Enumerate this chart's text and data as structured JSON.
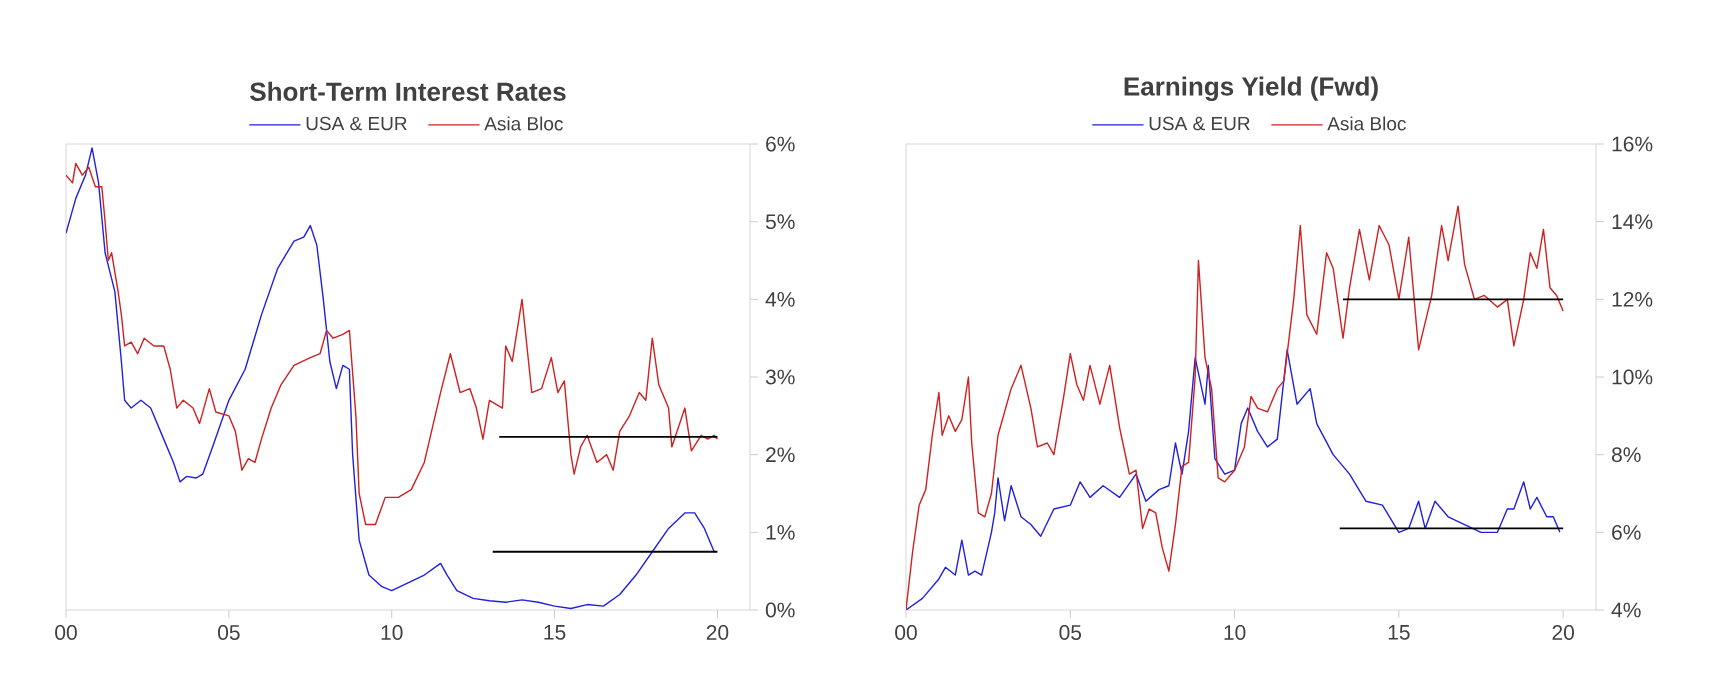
{
  "chart_data": [
    {
      "type": "line",
      "title": "Short-Term Interest Rates",
      "legend": "top",
      "marker": "none",
      "xlim": [
        0,
        21
      ],
      "xticks": [
        {
          "value": 0,
          "label": "00"
        },
        {
          "value": 5,
          "label": "05"
        },
        {
          "value": 10,
          "label": "10"
        },
        {
          "value": 15,
          "label": "15"
        },
        {
          "value": 20,
          "label": "20"
        }
      ],
      "ylim": [
        0,
        6
      ],
      "yticks": [
        {
          "value": 0,
          "label": "0%"
        },
        {
          "value": 1,
          "label": "1%"
        },
        {
          "value": 2,
          "label": "2%"
        },
        {
          "value": 3,
          "label": "3%"
        },
        {
          "value": 4,
          "label": "4%"
        },
        {
          "value": 5,
          "label": "5%"
        },
        {
          "value": 6,
          "label": "6%"
        }
      ],
      "series": [
        {
          "name": "USA & EUR",
          "color": "#2020e0",
          "x": [
            0,
            0.3,
            0.6,
            0.8,
            1.0,
            1.2,
            1.5,
            1.7,
            1.8,
            2.0,
            2.3,
            2.6,
            3.0,
            3.3,
            3.5,
            3.7,
            4.0,
            4.2,
            4.5,
            5.0,
            5.5,
            6.0,
            6.5,
            7.0,
            7.3,
            7.5,
            7.7,
            7.9,
            8.1,
            8.3,
            8.5,
            8.7,
            8.8,
            9.0,
            9.3,
            9.7,
            10.0,
            10.5,
            11.0,
            11.5,
            11.7,
            12.0,
            12.5,
            13.0,
            13.5,
            14.0,
            14.5,
            15.0,
            15.5,
            16.0,
            16.5,
            17.0,
            17.5,
            18.0,
            18.5,
            19.0,
            19.3,
            19.6,
            19.9
          ],
          "values": [
            4.85,
            5.3,
            5.6,
            5.95,
            5.5,
            4.6,
            4.1,
            3.2,
            2.7,
            2.6,
            2.7,
            2.6,
            2.2,
            1.9,
            1.65,
            1.72,
            1.7,
            1.75,
            2.1,
            2.7,
            3.1,
            3.8,
            4.4,
            4.75,
            4.8,
            4.95,
            4.7,
            4.0,
            3.2,
            2.85,
            3.15,
            3.1,
            2.0,
            0.9,
            0.45,
            0.3,
            0.25,
            0.35,
            0.45,
            0.6,
            0.45,
            0.25,
            0.15,
            0.12,
            0.1,
            0.13,
            0.1,
            0.05,
            0.02,
            0.07,
            0.05,
            0.2,
            0.45,
            0.75,
            1.05,
            1.25,
            1.25,
            1.05,
            0.75
          ]
        },
        {
          "name": "Asia Bloc",
          "color": "#d02020",
          "x": [
            0,
            0.2,
            0.3,
            0.5,
            0.7,
            0.9,
            1.1,
            1.2,
            1.3,
            1.4,
            1.6,
            1.7,
            1.8,
            2.0,
            2.2,
            2.4,
            2.7,
            3.0,
            3.2,
            3.4,
            3.6,
            3.9,
            4.1,
            4.4,
            4.6,
            5.0,
            5.2,
            5.4,
            5.6,
            5.8,
            6.0,
            6.3,
            6.6,
            7.0,
            7.5,
            7.8,
            8.0,
            8.2,
            8.5,
            8.7,
            8.9,
            9.0,
            9.2,
            9.5,
            9.8,
            10.2,
            10.6,
            11.0,
            11.5,
            11.8,
            12.1,
            12.4,
            12.6,
            12.8,
            13.0,
            13.4,
            13.5,
            13.7,
            14.0,
            14.3,
            14.6,
            14.9,
            15.1,
            15.3,
            15.5,
            15.6,
            15.8,
            16.0,
            16.3,
            16.6,
            16.8,
            17.0,
            17.3,
            17.6,
            17.8,
            18.0,
            18.2,
            18.5,
            18.6,
            19.0,
            19.2,
            19.5,
            19.7,
            19.9,
            20.0
          ],
          "values": [
            5.6,
            5.5,
            5.75,
            5.6,
            5.7,
            5.45,
            5.45,
            5.0,
            4.5,
            4.6,
            4.1,
            3.8,
            3.4,
            3.45,
            3.3,
            3.5,
            3.4,
            3.4,
            3.1,
            2.6,
            2.7,
            2.6,
            2.4,
            2.85,
            2.55,
            2.5,
            2.3,
            1.8,
            1.95,
            1.9,
            2.2,
            2.6,
            2.9,
            3.15,
            3.25,
            3.3,
            3.6,
            3.5,
            3.55,
            3.6,
            2.5,
            1.5,
            1.1,
            1.1,
            1.45,
            1.45,
            1.55,
            1.9,
            2.8,
            3.3,
            2.8,
            2.85,
            2.6,
            2.2,
            2.7,
            2.6,
            3.4,
            3.2,
            4.0,
            2.8,
            2.85,
            3.25,
            2.8,
            2.95,
            2.0,
            1.75,
            2.1,
            2.25,
            1.9,
            2.0,
            1.8,
            2.3,
            2.5,
            2.8,
            2.7,
            3.5,
            2.9,
            2.6,
            2.1,
            2.6,
            2.05,
            2.25,
            2.2,
            2.25,
            2.2
          ]
        },
        {
          "color": "#000000",
          "x": [
            13.3,
            20
          ],
          "values": [
            2.23,
            2.23
          ]
        },
        {
          "color": "#000000",
          "x": [
            13.1,
            20
          ],
          "values": [
            0.75,
            0.75
          ]
        }
      ]
    },
    {
      "type": "line",
      "title": "Earnings Yield (Fwd)",
      "legend": "top",
      "marker": "none",
      "xlim": [
        0,
        21
      ],
      "xticks": [
        {
          "value": 0,
          "label": "00"
        },
        {
          "value": 5,
          "label": "05"
        },
        {
          "value": 10,
          "label": "10"
        },
        {
          "value": 15,
          "label": "15"
        },
        {
          "value": 20,
          "label": "20"
        }
      ],
      "ylim": [
        4,
        16
      ],
      "yticks": [
        {
          "value": 4,
          "label": "4%"
        },
        {
          "value": 6,
          "label": "6%"
        },
        {
          "value": 8,
          "label": "8%"
        },
        {
          "value": 10,
          "label": "10%"
        },
        {
          "value": 12,
          "label": "12%"
        },
        {
          "value": 14,
          "label": "14%"
        },
        {
          "value": 16,
          "label": "16%"
        }
      ],
      "series": [
        {
          "name": "USA & EUR",
          "color": "#2020e0",
          "x": [
            0,
            0.5,
            1.0,
            1.2,
            1.5,
            1.7,
            1.9,
            2.1,
            2.3,
            2.6,
            2.7,
            2.8,
            3.0,
            3.2,
            3.5,
            3.8,
            4.1,
            4.5,
            5.0,
            5.3,
            5.6,
            6.0,
            6.5,
            7.0,
            7.3,
            7.7,
            8.0,
            8.2,
            8.4,
            8.6,
            8.8,
            9.1,
            9.2,
            9.4,
            9.7,
            10.0,
            10.2,
            10.4,
            10.7,
            11.0,
            11.3,
            11.6,
            11.9,
            12.3,
            12.5,
            13.0,
            13.5,
            14.0,
            14.5,
            15.0,
            15.3,
            15.6,
            15.8,
            16.1,
            16.5,
            17.0,
            17.5,
            18.0,
            18.3,
            18.5,
            18.8,
            19.0,
            19.2,
            19.5,
            19.7,
            19.9
          ],
          "values": [
            4.0,
            4.3,
            4.8,
            5.1,
            4.9,
            5.8,
            4.9,
            5.0,
            4.9,
            6.0,
            6.5,
            7.4,
            6.3,
            7.2,
            6.4,
            6.2,
            5.9,
            6.6,
            6.7,
            7.3,
            6.9,
            7.2,
            6.9,
            7.5,
            6.8,
            7.1,
            7.2,
            8.3,
            7.5,
            8.6,
            10.5,
            9.3,
            10.3,
            7.9,
            7.5,
            7.6,
            8.8,
            9.2,
            8.6,
            8.2,
            8.4,
            10.7,
            9.3,
            9.7,
            8.8,
            8.0,
            7.5,
            6.8,
            6.7,
            6.0,
            6.1,
            6.8,
            6.1,
            6.8,
            6.4,
            6.2,
            6.0,
            6.0,
            6.6,
            6.6,
            7.3,
            6.6,
            6.9,
            6.4,
            6.4,
            6.0
          ]
        },
        {
          "name": "Asia Bloc",
          "color": "#d02020",
          "x": [
            0,
            0.2,
            0.4,
            0.6,
            0.8,
            1.0,
            1.1,
            1.3,
            1.5,
            1.7,
            1.9,
            2.0,
            2.2,
            2.4,
            2.6,
            2.8,
            3.2,
            3.5,
            3.8,
            4.0,
            4.3,
            4.5,
            4.8,
            5.0,
            5.2,
            5.4,
            5.6,
            5.9,
            6.2,
            6.5,
            6.8,
            7.0,
            7.2,
            7.4,
            7.6,
            7.8,
            8.0,
            8.2,
            8.4,
            8.6,
            8.8,
            8.9,
            9.1,
            9.3,
            9.5,
            9.7,
            10.0,
            10.3,
            10.5,
            10.7,
            11.0,
            11.3,
            11.5,
            11.8,
            12.0,
            12.2,
            12.5,
            12.8,
            13.0,
            13.3,
            13.5,
            13.8,
            14.1,
            14.4,
            14.7,
            15.0,
            15.3,
            15.6,
            16.0,
            16.3,
            16.5,
            16.8,
            17.0,
            17.3,
            17.6,
            18.0,
            18.3,
            18.5,
            18.8,
            19.0,
            19.2,
            19.4,
            19.6,
            19.8,
            20.0
          ],
          "values": [
            4.0,
            5.5,
            6.7,
            7.1,
            8.5,
            9.6,
            8.5,
            9.0,
            8.6,
            8.9,
            10.0,
            8.3,
            6.5,
            6.4,
            7.0,
            8.5,
            9.7,
            10.3,
            9.2,
            8.2,
            8.3,
            8.0,
            9.5,
            10.6,
            9.8,
            9.4,
            10.3,
            9.3,
            10.3,
            8.7,
            7.5,
            7.6,
            6.1,
            6.6,
            6.5,
            5.6,
            5.0,
            6.2,
            7.7,
            7.8,
            10.0,
            13.0,
            10.5,
            9.7,
            7.4,
            7.3,
            7.6,
            8.2,
            9.5,
            9.2,
            9.1,
            9.7,
            9.9,
            12.0,
            13.9,
            11.6,
            11.1,
            13.2,
            12.8,
            11.0,
            12.3,
            13.8,
            12.5,
            13.9,
            13.4,
            12.0,
            13.6,
            10.7,
            12.1,
            13.9,
            13.0,
            14.4,
            12.9,
            12.0,
            12.1,
            11.8,
            12.0,
            10.8,
            12.0,
            13.2,
            12.8,
            13.8,
            12.3,
            12.1,
            11.7
          ]
        },
        {
          "color": "#000000",
          "x": [
            13.3,
            20
          ],
          "values": [
            12.0,
            12.0
          ]
        },
        {
          "color": "#000000",
          "x": [
            13.2,
            20
          ],
          "values": [
            6.1,
            6.1
          ]
        }
      ]
    }
  ]
}
